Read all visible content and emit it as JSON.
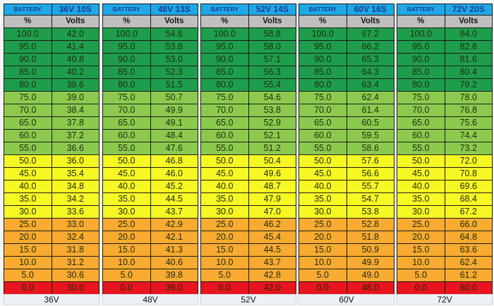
{
  "header_label": "BATTERY",
  "percent_label": "%",
  "volts_label": "Volts",
  "colors": {
    "header_blue": "#1fa8e8",
    "subheader_gray": "#bfbfbf",
    "dark_green": "#1e9e4c",
    "light_green": "#8cca4e",
    "yellow": "#f7f724",
    "orange": "#f8ab30",
    "red": "#e8141e"
  },
  "percentages": [
    "100.0",
    "95.0",
    "90.0",
    "85.0",
    "80.0",
    "75.0",
    "70.0",
    "65.0",
    "60.0",
    "55.0",
    "50.0",
    "45.0",
    "40.0",
    "35.0",
    "30.0",
    "25.0",
    "20.0",
    "15.0",
    "10.0",
    "5.0",
    "0.0"
  ],
  "row_color_bands": [
    "dark_green",
    "dark_green",
    "dark_green",
    "dark_green",
    "dark_green",
    "light_green",
    "light_green",
    "light_green",
    "light_green",
    "light_green",
    "yellow",
    "yellow",
    "yellow",
    "yellow",
    "yellow",
    "orange",
    "orange",
    "orange",
    "orange",
    "orange",
    "red"
  ],
  "packs": [
    {
      "config": "36V 10S",
      "footer": "36V",
      "volts": [
        "42.0",
        "41.4",
        "40.8",
        "40.2",
        "39.6",
        "39.0",
        "38.4",
        "37.8",
        "37.2",
        "36.6",
        "36.0",
        "35.4",
        "34.8",
        "34.2",
        "33.6",
        "33.0",
        "32.4",
        "31.8",
        "31.2",
        "30.6",
        "30.0"
      ]
    },
    {
      "config": "48V 13S",
      "footer": "48V",
      "volts": [
        "54.6",
        "53.8",
        "53.0",
        "52.3",
        "51.5",
        "50.7",
        "49.9",
        "49.1",
        "48.4",
        "47.6",
        "46.8",
        "46.0",
        "45.2",
        "44.5",
        "43.7",
        "42.9",
        "42.1",
        "41.3",
        "40.6",
        "39.8",
        "39.0"
      ]
    },
    {
      "config": "52V 14S",
      "footer": "52V",
      "volts": [
        "58.8",
        "58.0",
        "57.1",
        "56.3",
        "55.4",
        "54.6",
        "53.8",
        "52.9",
        "52.1",
        "51.2",
        "50.4",
        "49.6",
        "48.7",
        "47.9",
        "47.0",
        "46.2",
        "45.4",
        "44.5",
        "43.7",
        "42.8",
        "42.0"
      ]
    },
    {
      "config": "60V 16S",
      "footer": "60V",
      "volts": [
        "67.2",
        "66.2",
        "65.3",
        "64.3",
        "63.4",
        "62.4",
        "61.4",
        "60.5",
        "59.5",
        "58.6",
        "57.6",
        "56.6",
        "55.7",
        "54.7",
        "53.8",
        "52.8",
        "51.8",
        "50.9",
        "49.9",
        "49.0",
        "48.0"
      ]
    },
    {
      "config": "72V 20S",
      "footer": "72V",
      "volts": [
        "84.0",
        "82.8",
        "81.6",
        "80.4",
        "79.2",
        "78.0",
        "76.8",
        "75.6",
        "74.4",
        "73.2",
        "72.0",
        "70.8",
        "69.6",
        "68.4",
        "67.2",
        "66.0",
        "64.8",
        "63.6",
        "62.4",
        "61.2",
        "60.0"
      ]
    }
  ]
}
